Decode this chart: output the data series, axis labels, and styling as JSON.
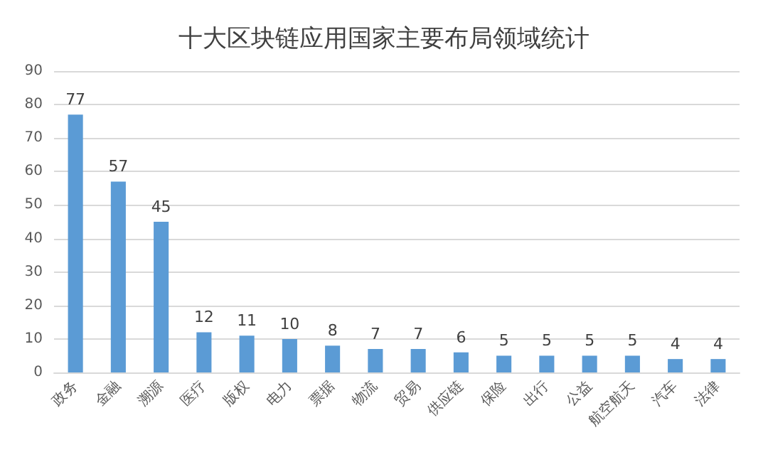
{
  "chart_data": {
    "type": "bar",
    "title": "十大区块链应用国家主要布局领域统计",
    "categories": [
      "政务",
      "金融",
      "溯源",
      "医疗",
      "版权",
      "电力",
      "票据",
      "物流",
      "贸易",
      "供应链",
      "保险",
      "出行",
      "公益",
      "航空航天",
      "汽车",
      "法律"
    ],
    "values": [
      77,
      57,
      45,
      12,
      11,
      10,
      8,
      7,
      7,
      6,
      5,
      5,
      5,
      5,
      4,
      4
    ],
    "color": "#5b9bd5",
    "ylim": [
      0,
      90
    ],
    "yticks": [
      0,
      10,
      20,
      30,
      40,
      50,
      60,
      70,
      80,
      90
    ],
    "grid": "y",
    "data_labels": true
  }
}
